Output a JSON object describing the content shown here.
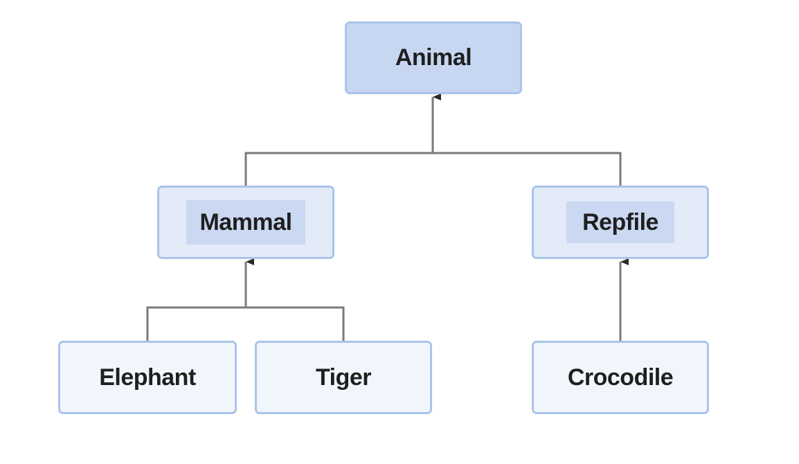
{
  "diagram": {
    "type": "class-hierarchy",
    "nodes": {
      "animal": "Animal",
      "mammal": "Mammal",
      "repfile": "Repfile",
      "elephant": "Elephant",
      "tiger": "Tiger",
      "crocodile": "Crocodile"
    },
    "edges": [
      {
        "from": "mammal",
        "to": "animal"
      },
      {
        "from": "repfile",
        "to": "animal"
      },
      {
        "from": "elephant",
        "to": "mammal"
      },
      {
        "from": "tiger",
        "to": "mammal"
      },
      {
        "from": "crocodile",
        "to": "repfile"
      }
    ],
    "colors": {
      "border": "#a9c4ea",
      "root_fill": "#c7d7f2",
      "mid_fill": "#e3ebf9",
      "leaf_fill": "#f1f6fd",
      "connector": "#7a7a7a"
    }
  }
}
